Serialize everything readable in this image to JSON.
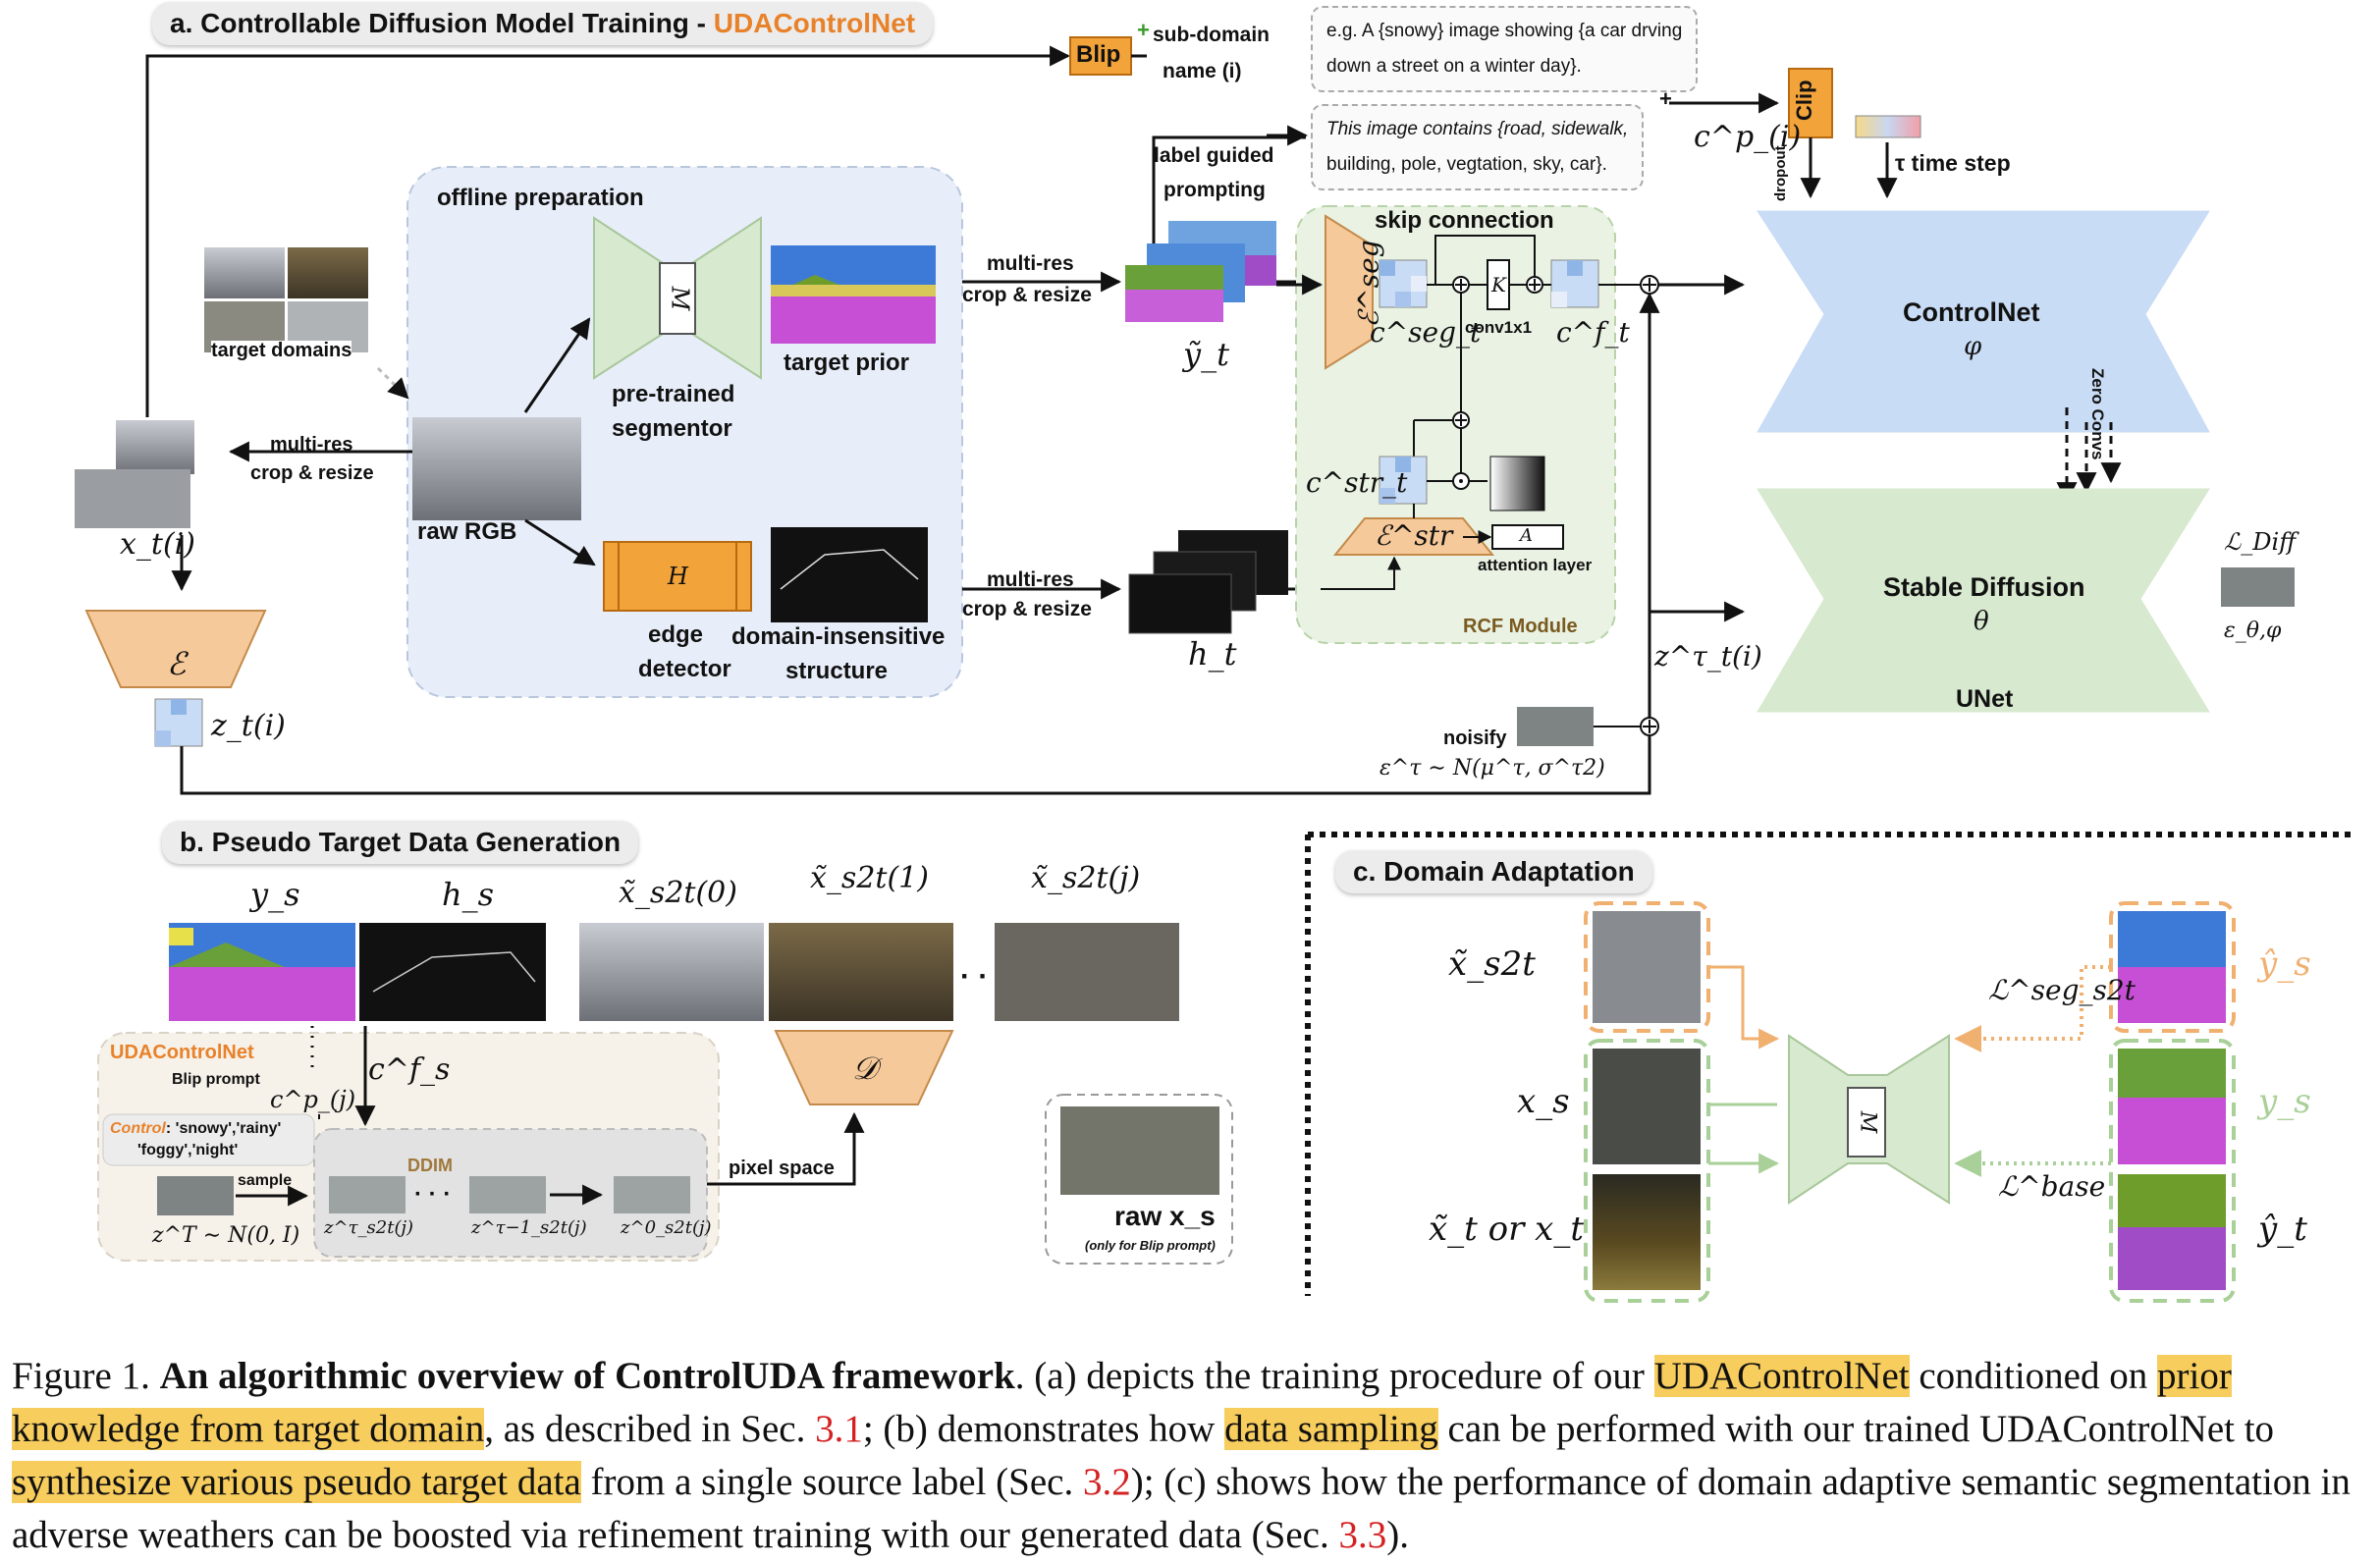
{
  "panel_a": {
    "header_prefix": "a. Controllable Diffusion Model Training - ",
    "header_accent": "UDAControlNet",
    "blip_label": "Blip",
    "plus": "+",
    "subdomain_label_1": "sub-domain",
    "subdomain_label_2": "name (i)",
    "prompt_box_1_line1": "e.g. A {snowy} image showing {a car drving",
    "prompt_box_1_line2": "down a street on a winter day}.",
    "prompt_box_2_line1": "This image contains {road, sidewalk,",
    "prompt_box_2_line2": "building, pole, vegtation, sky, car}.",
    "clip_label": "Clip",
    "dropout_label": "dropout",
    "cp_label": "c^p_(i)",
    "timestep_label": "τ time step",
    "label_guided_1": "label guided",
    "label_guided_2": "prompting",
    "offline_preparation": "offline preparation",
    "target_domains": "target domains",
    "raw_rgb": "raw RGB",
    "pretrained_1": "pre-trained",
    "pretrained_2": "segmentor",
    "target_prior": "target prior",
    "edge_1": "edge",
    "edge_2": "detector",
    "domain_ins_1": "domain-insensitive",
    "domain_ins_2": "structure",
    "multires_1": "multi-res",
    "multires_2": "crop & resize",
    "x_ti": "x_t(i)",
    "encoder_E": "ℰ",
    "z_ti": "z_t(i)",
    "y_tilde_t": "ỹ_t",
    "h_t": "h_t",
    "skip_connection": "skip connection",
    "eseg": "ℰ^seg",
    "cseg": "c^seg_t",
    "conv1x1": "conv1x1",
    "kappa": "K",
    "cf": "c^f_t",
    "cstr": "c^str_t",
    "estr": "ℰ^str",
    "attention_layer": "attention layer",
    "attention_A": "A",
    "rcf_module": "RCF Module",
    "seg_M": "M",
    "edge_H": "H",
    "controlnet": "ControlNet",
    "phi": "φ",
    "zero_convs": "Zero Convs",
    "stable_diffusion": "Stable Diffusion",
    "theta": "θ",
    "unet": "UNet",
    "l_diff": "ℒ_Diff",
    "eps": "ε_θ,φ",
    "z_tau": "z^τ_t(i)",
    "noisify": "noisify",
    "noise_dist": "ε^τ ∼ N(μ^τ, σ^τ2)"
  },
  "panel_b": {
    "header": "b. Pseudo Target Data Generation",
    "ys": "y_s",
    "hs": "h_s",
    "x0": "x̃_s2t(0)",
    "x1": "x̃_s2t(1)",
    "xj": "x̃_s2t(j)",
    "dots": "· ·",
    "udacontrolnet": "UDAControlNet",
    "blip_prompt": "Blip prompt",
    "cpj": "c^p_(j)",
    "csf": "c^f_s",
    "control_label": "Control",
    "control_values_1": ": 'snowy','rainy'",
    "control_values_2": "'foggy','night'",
    "sample": "sample",
    "zT": "z^T ∼ N(0, I)",
    "ddim": "DDIM",
    "z_tau": "z^τ_s2t(j)",
    "z_tau_1": "z^τ−1_s2t(j)",
    "z_0": "z^0_s2t(j)",
    "decoder_D": "𝒟",
    "pixel_space": "pixel space",
    "raw_xs": "raw x_s",
    "raw_xs_note": "(only for Blip prompt)"
  },
  "panel_c": {
    "header": "c. Domain Adaptation",
    "xs2t": "x̃_s2t",
    "xs": "x_s",
    "xt": "x̃_t or x_t",
    "y_hat_s": "ŷ_s",
    "ys": "y_s",
    "y_hat_t": "ŷ_t",
    "l_seg": "ℒ^seg_s2t",
    "l_base": "ℒ^base",
    "seg_M": "M"
  },
  "caption": {
    "label": "Figure 1.",
    "title": "An algorithmic overview of ControlUDA framework",
    "s1": ". (a) depicts the training procedure of our ",
    "hl1": "UDAControlNet",
    "s2": " conditioned on ",
    "hl2": "prior knowledge from target domain",
    "s3": ", as described in Sec. ",
    "ref1": "3.1",
    "s4": "; (b) demonstrates how ",
    "hl3": "data sampling",
    "s5": " can be performed with our trained UDAControlNet to ",
    "hl4": "synthesize various pseudo target data",
    "s6": " from a single source label (Sec. ",
    "ref2": "3.2",
    "s7": "); (c) shows how the performance of domain adaptive semantic segmentation in adverse weathers can be boosted via refinement training with our generated data (Sec. ",
    "ref3": "3.3",
    "s8": ")."
  },
  "colors": {
    "accent_orange": "#e8822a",
    "encoder_fill": "#f6c99a",
    "controlnet_blue": "#c9dcf5",
    "unet_green": "#d7e9cf",
    "highlight": "#f7cd5d",
    "ref_red": "#d42121",
    "rcf_green": "#e9f2e3",
    "offline_blue": "#e8eef9"
  }
}
